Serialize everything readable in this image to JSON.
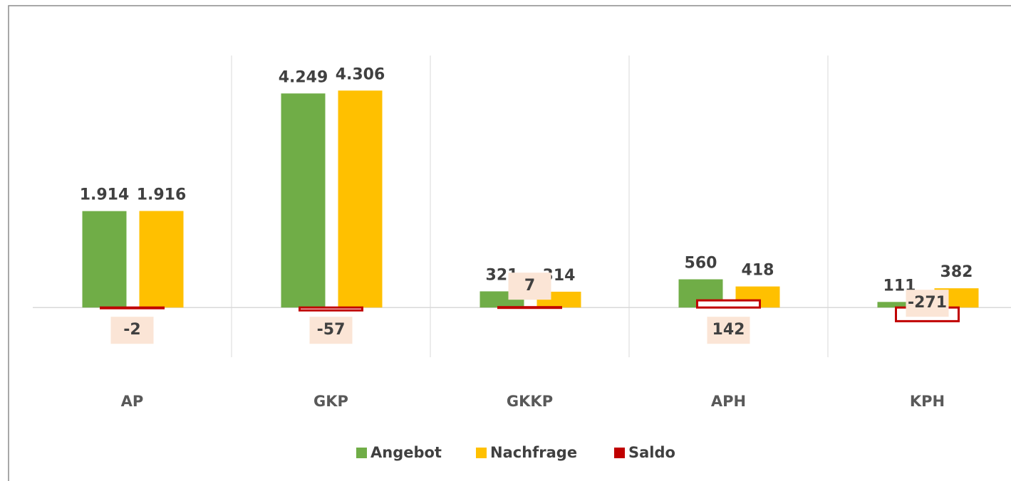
{
  "chart_data": {
    "type": "bar",
    "categories": [
      "AP",
      "GKP",
      "GKKP",
      "APH",
      "KPH"
    ],
    "series": [
      {
        "name": "Angebot",
        "color": "#70ad47",
        "values": [
          1914,
          4249,
          321,
          560,
          111
        ],
        "value_labels": [
          "1.914",
          "4.249",
          "321",
          "560",
          "111"
        ]
      },
      {
        "name": "Nachfrage",
        "color": "#ffc000",
        "values": [
          1916,
          4306,
          314,
          418,
          382
        ],
        "value_labels": [
          "1.916",
          "4.306",
          "314",
          "418",
          "382"
        ]
      },
      {
        "name": "Saldo",
        "color": "#c00000",
        "values": [
          -2,
          -57,
          7,
          142,
          -271
        ]
      }
    ],
    "ylim": [
      -1000,
      5200
    ],
    "legend": "bottom"
  }
}
